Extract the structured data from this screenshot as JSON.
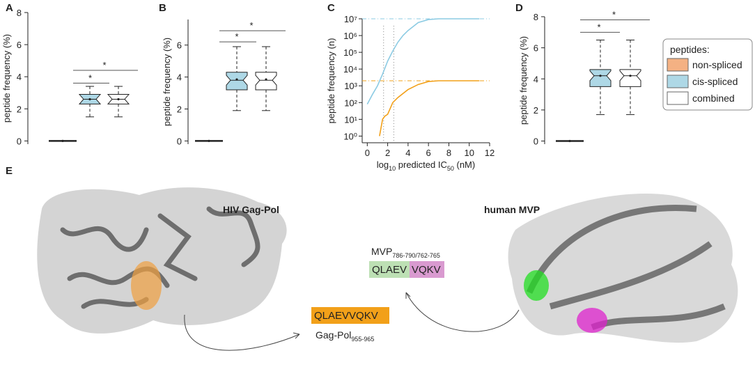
{
  "panels": [
    "A",
    "B",
    "C",
    "D",
    "E"
  ],
  "chart_data": [
    {
      "type": "box",
      "ylabel": "peptide frequency (%)",
      "categories": [
        null,
        null,
        null
      ],
      "colors": [
        "#f4b183",
        "#aed8e6",
        "#ffffff"
      ],
      "ylim": [
        -0.2,
        8
      ],
      "yticks": [
        0,
        2,
        4,
        6,
        8
      ],
      "boxes": [
        {
          "min": 0,
          "q1": 0,
          "median": 0,
          "q3": 0,
          "max": 0,
          "mean": 0
        },
        {
          "min": 1.5,
          "q1": 2.3,
          "median": 2.6,
          "q3": 2.9,
          "max": 3.4,
          "mean": 2.6
        },
        {
          "min": 1.5,
          "q1": 2.3,
          "median": 2.6,
          "q3": 2.9,
          "max": 3.4,
          "mean": 2.6
        }
      ],
      "significance": [
        {
          "from": 0,
          "to": 1,
          "y": 3.6,
          "label": "*"
        },
        {
          "from": 0,
          "to": 2,
          "y": 4.4,
          "label": "*"
        }
      ]
    },
    {
      "type": "box",
      "ylabel": "peptide frequency (%)",
      "categories": [
        null,
        null,
        null
      ],
      "colors": [
        "#f4b183",
        "#aed8e6",
        "#ffffff"
      ],
      "ylim": [
        -0.2,
        7.6
      ],
      "yticks": [
        0,
        2,
        4,
        6
      ],
      "boxes": [
        {
          "min": 0,
          "q1": 0,
          "median": 0,
          "q3": 0,
          "max": 0,
          "mean": 0
        },
        {
          "min": 1.9,
          "q1": 3.2,
          "median": 3.8,
          "q3": 4.3,
          "max": 5.9,
          "mean": 3.85
        },
        {
          "min": 1.9,
          "q1": 3.2,
          "median": 3.8,
          "q3": 4.3,
          "max": 5.9,
          "mean": 3.85
        }
      ],
      "significance": [
        {
          "from": 0,
          "to": 1,
          "y": 6.2,
          "label": "*"
        },
        {
          "from": 0,
          "to": 2,
          "y": 6.9,
          "label": "*"
        }
      ]
    },
    {
      "type": "line",
      "ylabel": "peptide frequency (n)",
      "xlabel": [
        "log",
        "10",
        " predicted IC",
        "50",
        " (nM)"
      ],
      "log_y": true,
      "xlim": [
        -0.5,
        12
      ],
      "xticks": [
        0,
        2,
        4,
        6,
        8,
        10,
        12
      ],
      "ylim": [
        0.4,
        10000000
      ],
      "yticks": [
        {
          "value": 1,
          "label": "10⁰"
        },
        {
          "value": 10,
          "label": "10¹"
        },
        {
          "value": 100,
          "label": "10²"
        },
        {
          "value": 1000,
          "label": "10³"
        },
        {
          "value": 10000,
          "label": "10⁴"
        },
        {
          "value": 100000,
          "label": "10⁵"
        },
        {
          "value": 1000000,
          "label": "10⁶"
        },
        {
          "value": 10000000,
          "label": "10⁷"
        }
      ],
      "series": [
        {
          "color": "#8ccbe3",
          "x": [
            0,
            0.5,
            1,
            1.5,
            2,
            2.5,
            3,
            3.5,
            4,
            5,
            6,
            7,
            8,
            9,
            10,
            11
          ],
          "values": [
            80,
            300,
            1000,
            5000,
            30000,
            120000,
            400000,
            1000000,
            2000000,
            6000000,
            9000000,
            10000000,
            10000000,
            10000000,
            10000000,
            10000000
          ]
        },
        {
          "color": "#f2a019",
          "x": [
            1.2,
            1.5,
            1.7,
            2,
            2.5,
            3,
            4,
            5,
            6,
            7,
            8,
            9,
            10,
            11
          ],
          "values": [
            1,
            10,
            15,
            20,
            100,
            200,
            600,
            1200,
            1800,
            2000,
            2000,
            2000,
            2000,
            2000
          ]
        }
      ],
      "hlines": [
        {
          "value": 10000000,
          "color": "#8ccbe3"
        },
        {
          "value": 2000,
          "color": "#f2a019"
        }
      ],
      "vlines": [
        1.6,
        2.6
      ]
    },
    {
      "type": "box",
      "ylabel": "peptide frequency (%)",
      "categories": [
        null,
        null,
        null
      ],
      "colors": [
        "#f4b183",
        "#aed8e6",
        "#ffffff"
      ],
      "ylim": [
        -0.2,
        8
      ],
      "yticks": [
        0,
        2,
        4,
        6,
        8
      ],
      "boxes": [
        {
          "min": 0,
          "q1": 0,
          "median": 0,
          "q3": 0,
          "max": 0,
          "mean": 0
        },
        {
          "min": 1.7,
          "q1": 3.5,
          "median": 4.2,
          "q3": 4.6,
          "max": 6.5,
          "mean": 4.2
        },
        {
          "min": 1.7,
          "q1": 3.5,
          "median": 4.2,
          "q3": 4.6,
          "max": 6.5,
          "mean": 4.2
        }
      ],
      "significance": [
        {
          "from": 0,
          "to": 1,
          "y": 7.0,
          "label": "*"
        },
        {
          "from": 0,
          "to": 2,
          "y": 7.8,
          "label": "*"
        }
      ]
    }
  ],
  "legend": {
    "title": "peptides:",
    "entries": [
      {
        "name": "non-spliced",
        "color": "#f4b183"
      },
      {
        "name": "cis-spliced",
        "color": "#aed8e6"
      },
      {
        "name": "combined",
        "color": "#ffffff"
      }
    ]
  },
  "structures": {
    "left_title": "HIV Gag-Pol",
    "right_title": "human MVP",
    "left_peptide": "QLAEVVQKV",
    "left_source": "Gag-Pol",
    "left_source_sub": "955-965",
    "right_source": "MVP",
    "right_source_sub": "786-790/762-765",
    "right_part1": "QLAEV",
    "right_part2": "VQKV"
  }
}
